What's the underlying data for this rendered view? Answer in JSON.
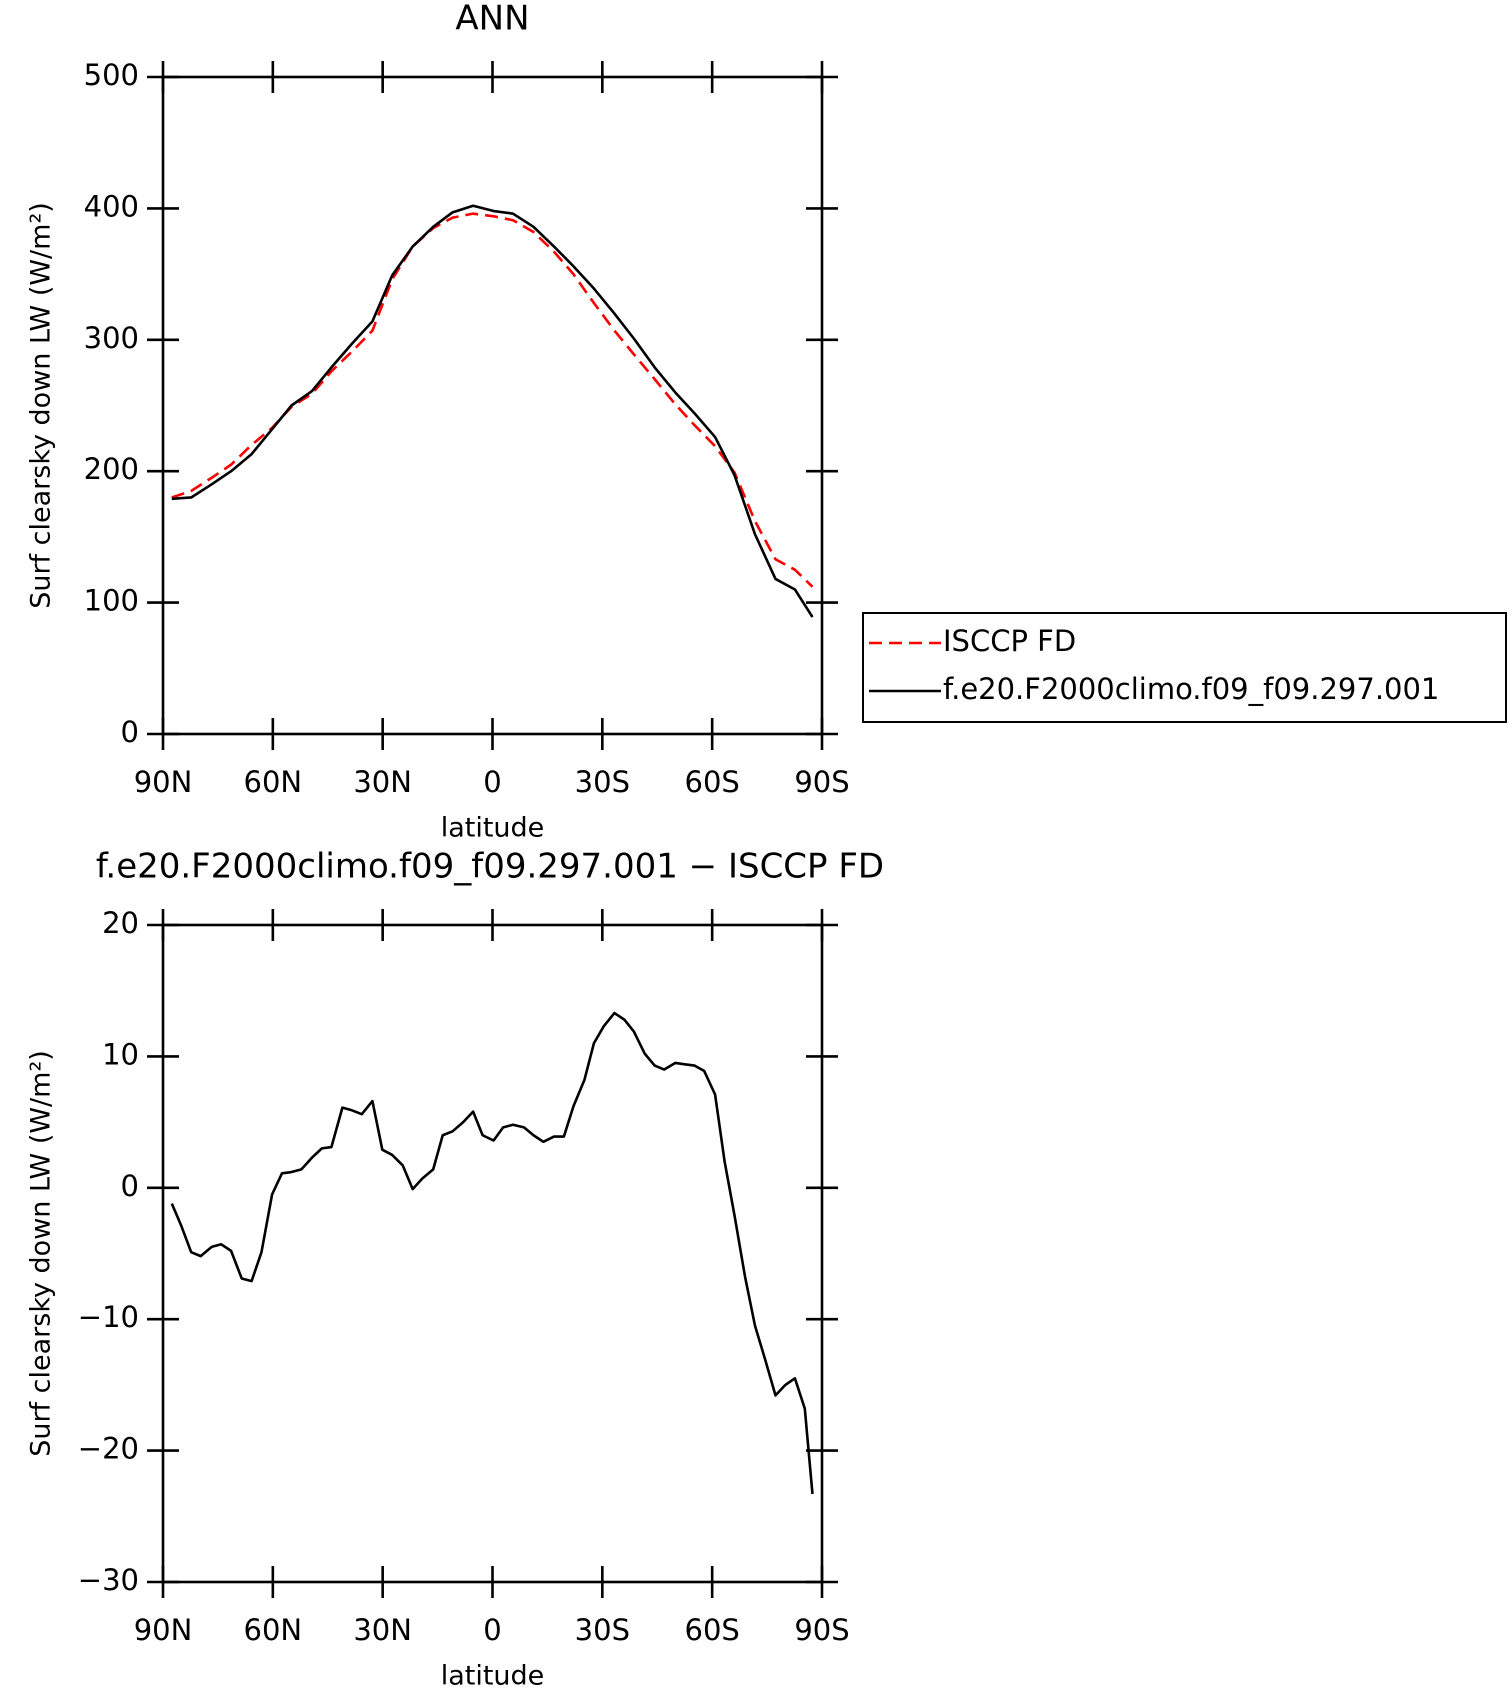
{
  "chart_data": [
    {
      "type": "line",
      "title": "ANN",
      "x_label": "latitude",
      "y_label": "Surf clearsky down LW (W/m²)",
      "x": [
        87.6,
        82.3,
        76.7,
        71.4,
        65.8,
        60.2,
        54.9,
        49.3,
        44.0,
        38.4,
        32.8,
        27.4,
        21.8,
        16.2,
        10.9,
        5.3,
        -0.3,
        -5.6,
        -11.2,
        -16.8,
        -22.1,
        -27.7,
        -33.3,
        -38.6,
        -44.3,
        -49.9,
        -55.2,
        -60.8,
        -66.1,
        -71.7,
        -77.3,
        -82.6,
        -87.4
      ],
      "series": [
        {
          "name": "ISCCP FD",
          "color": "#ff0000",
          "dash": true,
          "values": [
            180,
            185,
            195,
            205,
            220,
            233,
            249,
            259,
            276,
            291,
            307,
            346,
            371,
            385,
            393,
            396,
            394,
            391,
            382,
            367,
            350,
            328,
            307,
            289,
            270,
            251,
            235,
            219,
            199,
            162,
            133,
            125,
            112
          ]
        },
        {
          "name": "f.e20.F2000climo.f09_f09.297.001",
          "color": "#000000",
          "dash": false,
          "values": [
            179,
            180,
            190,
            200,
            213,
            232,
            250,
            261,
            279,
            297,
            314,
            349,
            371,
            386,
            397,
            402,
            398,
            396,
            386,
            371,
            356,
            339,
            320,
            301,
            279,
            260,
            244,
            226,
            197,
            152,
            118,
            110,
            89
          ]
        }
      ],
      "xlim": [
        90,
        -90
      ],
      "xticks": [
        {
          "value": 90,
          "label": "90N"
        },
        {
          "value": 60,
          "label": "60N"
        },
        {
          "value": 30,
          "label": "30N"
        },
        0,
        {
          "value": -30,
          "label": "30S"
        },
        {
          "value": -60,
          "label": "60S"
        },
        {
          "value": -90,
          "label": "90S"
        }
      ],
      "ylim": [
        0,
        500
      ],
      "yticks": [
        0,
        100,
        200,
        300,
        400,
        500
      ],
      "legend": "right"
    },
    {
      "type": "line",
      "title": "f.e20.F2000climo.f09_f09.297.001 − ISCCP FD",
      "x_label": "latitude",
      "y_label": "Surf clearsky down LW (W/m²)",
      "x": [
        87.6,
        85.0,
        82.3,
        79.7,
        76.7,
        74.1,
        71.4,
        68.5,
        65.8,
        63.1,
        60.2,
        57.5,
        54.9,
        52.2,
        49.3,
        46.6,
        44.0,
        41.0,
        38.4,
        35.7,
        32.8,
        30.1,
        27.4,
        24.5,
        21.8,
        19.2,
        16.2,
        13.6,
        10.9,
        8.0,
        5.3,
        2.7,
        -0.3,
        -2.9,
        -5.6,
        -8.6,
        -11.2,
        -13.9,
        -16.8,
        -19.5,
        -22.1,
        -25.1,
        -27.7,
        -30.4,
        -33.3,
        -36.0,
        -38.6,
        -41.6,
        -44.3,
        -46.9,
        -49.9,
        -52.5,
        -55.2,
        -57.8,
        -60.8,
        -63.4,
        -66.1,
        -69.0,
        -71.7,
        -74.4,
        -77.3,
        -80.0,
        -82.6,
        -85.3,
        -87.4
      ],
      "values": [
        -1.2,
        -2.9,
        -4.9,
        -5.2,
        -4.5,
        -4.3,
        -4.8,
        -6.9,
        -7.1,
        -4.9,
        -0.5,
        1.1,
        1.2,
        1.4,
        2.3,
        3.0,
        3.1,
        6.1,
        5.9,
        5.6,
        6.6,
        2.9,
        2.5,
        1.7,
        -0.1,
        0.7,
        1.4,
        4.0,
        4.3,
        5.0,
        5.8,
        4.0,
        3.6,
        4.6,
        4.8,
        4.6,
        4.0,
        3.5,
        3.9,
        3.9,
        6.2,
        8.2,
        11.0,
        12.3,
        13.3,
        12.8,
        11.9,
        10.2,
        9.3,
        9.0,
        9.5,
        9.4,
        9.3,
        8.9,
        7.1,
        2.0,
        -2.1,
        -6.8,
        -10.5,
        -13.0,
        -15.8,
        -15.0,
        -14.5,
        -16.8,
        -23.3
      ],
      "color": "#000000",
      "xlim": [
        90,
        -90
      ],
      "xticks": [
        {
          "value": 90,
          "label": "90N"
        },
        {
          "value": 60,
          "label": "60N"
        },
        {
          "value": 30,
          "label": "30N"
        },
        0,
        {
          "value": -30,
          "label": "30S"
        },
        {
          "value": -60,
          "label": "60S"
        },
        {
          "value": -90,
          "label": "90S"
        }
      ],
      "ylim": [
        -30,
        20
      ],
      "yticks": [
        {
          "value": -30,
          "label": "−30"
        },
        {
          "value": -20,
          "label": "−20"
        },
        {
          "value": -10,
          "label": "−10"
        },
        0,
        10,
        20
      ]
    }
  ]
}
